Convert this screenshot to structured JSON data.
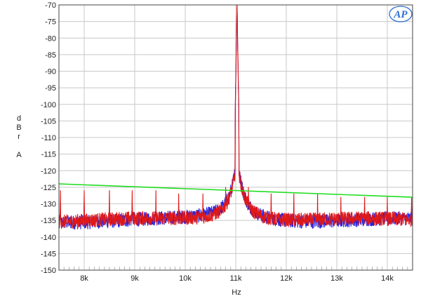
{
  "chart_data": {
    "type": "line",
    "title": "",
    "xlabel": "Hz",
    "ylabel_letters": [
      "d",
      "B",
      "r",
      "",
      "A"
    ],
    "xlim": [
      7500,
      14500
    ],
    "ylim": [
      -150,
      -70
    ],
    "x_scale": "linear",
    "grid": true,
    "y_ticks": [
      -70,
      -75,
      -80,
      -85,
      -90,
      -95,
      -100,
      -105,
      -110,
      -115,
      -120,
      -125,
      -130,
      -135,
      -140,
      -145,
      -150
    ],
    "x_ticks": [
      {
        "value": 8000,
        "label": "8k"
      },
      {
        "value": 9000,
        "label": "9k"
      },
      {
        "value": 10000,
        "label": "10k"
      },
      {
        "value": 11000,
        "label": "11k"
      },
      {
        "value": 12000,
        "label": "12k"
      },
      {
        "value": 13000,
        "label": "13k"
      },
      {
        "value": 14000,
        "label": "14k"
      }
    ],
    "series": [
      {
        "color": "#2222e0",
        "fundamental_hz": 11025,
        "noise_floor_db": -135,
        "spurs": [
          {
            "x": 7530,
            "y": -130
          },
          {
            "x": 8000,
            "y": -130
          },
          {
            "x": 8500,
            "y": -131
          },
          {
            "x": 8950,
            "y": -130
          },
          {
            "x": 9420,
            "y": -131
          },
          {
            "x": 9870,
            "y": -130
          },
          {
            "x": 10350,
            "y": -131
          },
          {
            "x": 10800,
            "y": -129
          },
          {
            "x": 11250,
            "y": -129
          },
          {
            "x": 11700,
            "y": -131
          },
          {
            "x": 12150,
            "y": -130
          },
          {
            "x": 12620,
            "y": -131
          },
          {
            "x": 13080,
            "y": -131
          },
          {
            "x": 13550,
            "y": -131
          },
          {
            "x": 14000,
            "y": -131
          },
          {
            "x": 14480,
            "y": -131
          }
        ]
      },
      {
        "color": "#e01818",
        "fundamental_hz": 11025,
        "noise_floor_db": -135,
        "spurs": [
          {
            "x": 7530,
            "y": -126
          },
          {
            "x": 8000,
            "y": -126
          },
          {
            "x": 8500,
            "y": -126
          },
          {
            "x": 8950,
            "y": -126
          },
          {
            "x": 9420,
            "y": -126
          },
          {
            "x": 9870,
            "y": -127
          },
          {
            "x": 10350,
            "y": -127
          },
          {
            "x": 10800,
            "y": -125
          },
          {
            "x": 11250,
            "y": -125
          },
          {
            "x": 11700,
            "y": -127
          },
          {
            "x": 12150,
            "y": -127
          },
          {
            "x": 12620,
            "y": -127
          },
          {
            "x": 13080,
            "y": -128
          },
          {
            "x": 13550,
            "y": -128
          },
          {
            "x": 14000,
            "y": -128
          },
          {
            "x": 14480,
            "y": -128
          }
        ]
      },
      {
        "color": "#22dd22",
        "type": "line",
        "points": [
          {
            "x": 7500,
            "y": -124
          },
          {
            "x": 14500,
            "y": -128
          }
        ]
      }
    ]
  },
  "logo": {
    "text": "AP",
    "color": "#2f6fd0"
  },
  "colors": {
    "grid": "#c8c8c8",
    "axis": "#444444",
    "blue_trace": "#2222e0",
    "red_trace": "#e01818",
    "limit_line": "#22dd22"
  }
}
